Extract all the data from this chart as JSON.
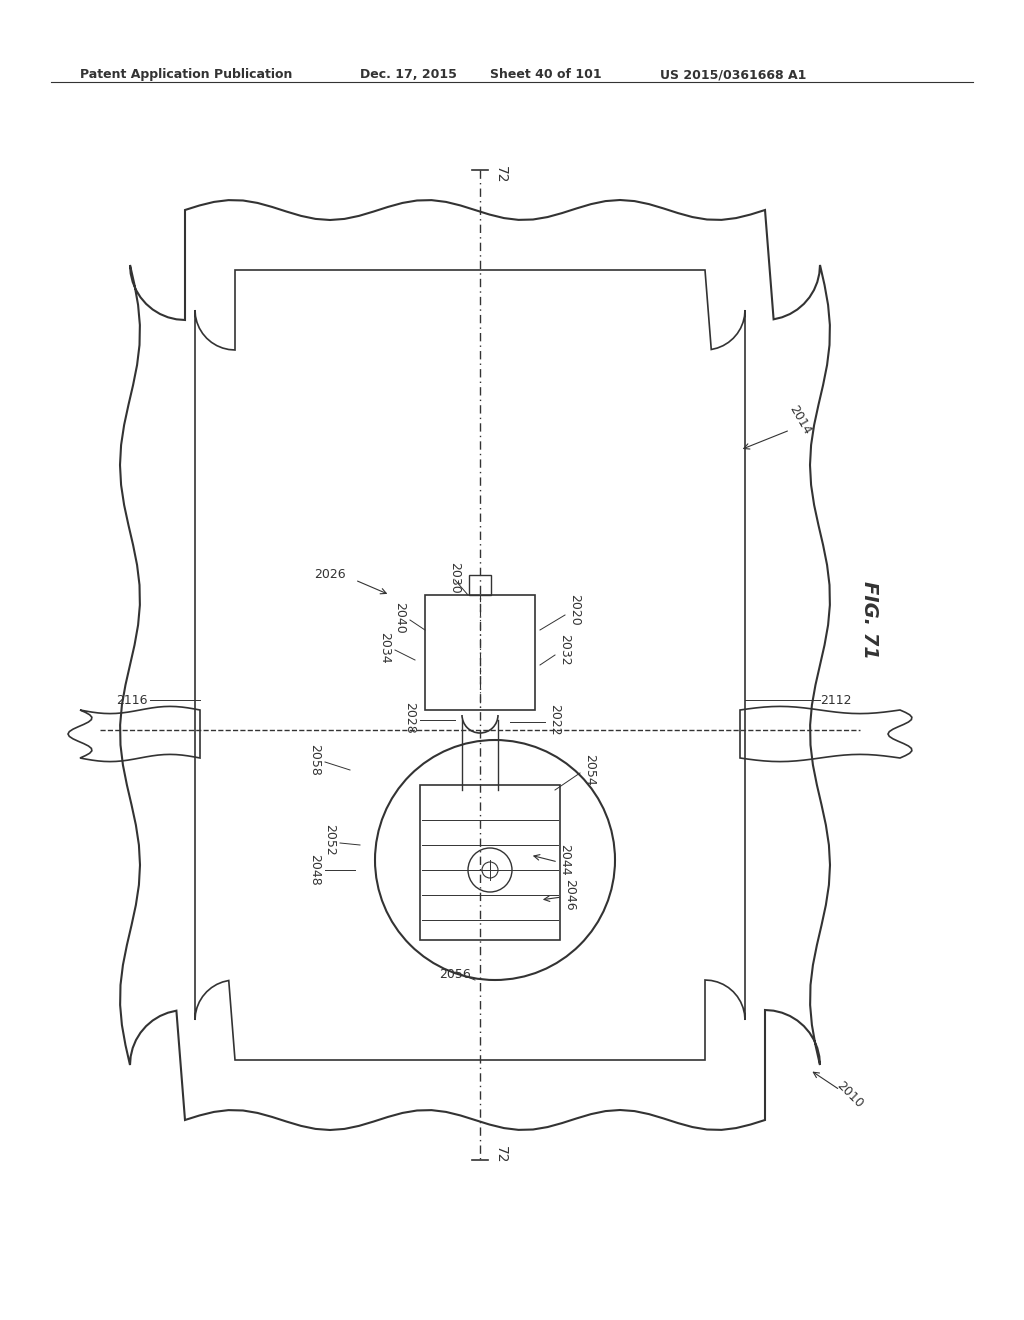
{
  "bg_color": "#ffffff",
  "line_color": "#333333",
  "header_text": "Patent Application Publication",
  "header_date": "Dec. 17, 2015",
  "header_sheet": "Sheet 40 of 101",
  "header_patent": "US 2015/0361668 A1",
  "fig_label": "FIG. 71",
  "labels": {
    "72_top": "72",
    "72_bot": "72",
    "2010": "2010",
    "2014": "2014",
    "2116": "2116",
    "2112": "2112",
    "2026": "2026",
    "2020": "2020",
    "2022": "2022",
    "2028": "2028",
    "2030": "2030",
    "2032": "2032",
    "2034": "2034",
    "2040": "2040",
    "2044": "2044",
    "2046": "2046",
    "2048": "2048",
    "2052": "2052",
    "2054": "2054",
    "2056": "2056",
    "2058": "2058"
  }
}
